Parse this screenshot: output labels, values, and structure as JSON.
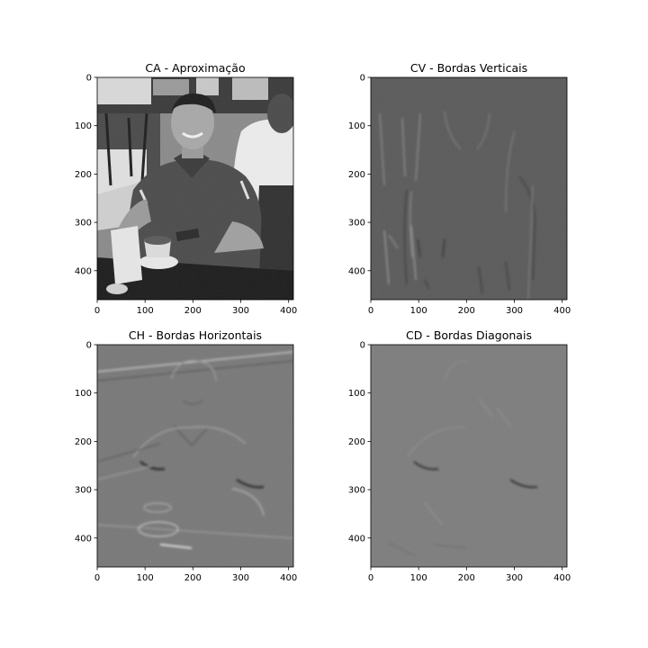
{
  "figure": {
    "background": "#ffffff",
    "layout": "2x2 grid of grayscale image subplots"
  },
  "chart_data": [
    {
      "type": "image",
      "title": "CA - Aproximação",
      "colormap": "gray",
      "content": "grayscale photo: smiling man in dark polo shirt seated at cafe table holding a phone, cup of coffee on saucer and folded napkin in front",
      "base_tone": "#6e6e6e",
      "xlim": [
        0,
        410
      ],
      "ylim": [
        460,
        0
      ],
      "xticks": [
        0,
        100,
        200,
        300,
        400
      ],
      "yticks": [
        0,
        100,
        200,
        300,
        400
      ],
      "grid": false
    },
    {
      "type": "image",
      "title": "CV - Bordas Verticais",
      "colormap": "gray",
      "content": "vertical detail coefficients: mid-gray field with faint embossed vertical edges of the scene",
      "base_tone": "#5a5a5a",
      "xlim": [
        0,
        410
      ],
      "ylim": [
        460,
        0
      ],
      "xticks": [
        0,
        100,
        200,
        300,
        400
      ],
      "yticks": [
        0,
        100,
        200,
        300,
        400
      ],
      "grid": false
    },
    {
      "type": "image",
      "title": "CH - Bordas Horizontais",
      "colormap": "gray",
      "content": "horizontal detail coefficients: mid-gray field with embossed horizontal edges (collar, shirt stripes, cup and saucer)",
      "base_tone": "#787878",
      "xlim": [
        0,
        410
      ],
      "ylim": [
        460,
        0
      ],
      "xticks": [
        0,
        100,
        200,
        300,
        400
      ],
      "yticks": [
        0,
        100,
        200,
        300,
        400
      ],
      "grid": false
    },
    {
      "type": "image",
      "title": "CD - Bordas Diagonais",
      "colormap": "gray",
      "content": "diagonal detail coefficients: nearly uniform gray field with faint diagonal edge traces",
      "base_tone": "#7d7d7d",
      "xlim": [
        0,
        410
      ],
      "ylim": [
        460,
        0
      ],
      "xticks": [
        0,
        100,
        200,
        300,
        400
      ],
      "yticks": [
        0,
        100,
        200,
        300,
        400
      ],
      "grid": false
    }
  ]
}
